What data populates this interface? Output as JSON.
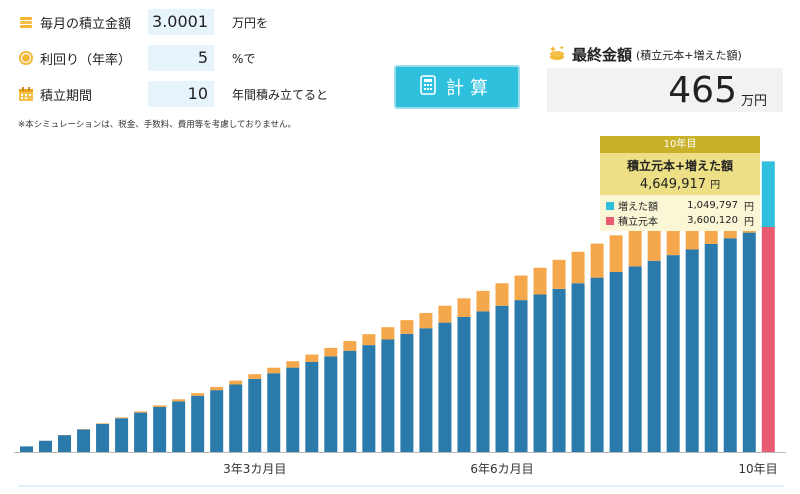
{
  "form": {
    "monthly": {
      "label": "毎月の積立金額",
      "value": "3.0001",
      "suffix": "万円を",
      "icon": "coin-stack-icon"
    },
    "rate": {
      "label": "利回り（年率）",
      "value": "5",
      "suffix": "%で",
      "icon": "coin-icon"
    },
    "period": {
      "label": "積立期間",
      "value": "10",
      "suffix": "年間積み立てると",
      "icon": "calendar-icon"
    }
  },
  "note": "※本シミュレーションは、税金、手数料、費用等を考慮しておりません。",
  "calc_button": {
    "label": "計算",
    "icon": "calculator-icon"
  },
  "result": {
    "title": "最終金額",
    "subtitle": "(積立元本+増えた額)",
    "value": "465",
    "unit": "万円",
    "icon": "coins-sparkle-icon"
  },
  "tooltip": {
    "period": "10年目",
    "total_label": "積立元本+増えた額",
    "total_value": "4,649,917",
    "total_unit": "円",
    "gain_label": "増えた額",
    "gain_value": "1,049,797",
    "principal_label": "積立元本",
    "principal_value": "3,600,120",
    "unit": "円"
  },
  "colors": {
    "principal": "#2a7aac",
    "gain": "#f5a84b",
    "final_principal": "#e95b71",
    "final_gain": "#2ec0dd"
  },
  "chart_data": {
    "type": "bar",
    "stacked": true,
    "xlabels": [
      "3年3カ月目",
      "6年6カ月目",
      "10年目"
    ],
    "series": [
      {
        "name": "積立元本",
        "values": [
          90000,
          180000,
          270000,
          360000,
          450000,
          540000,
          630000,
          720000,
          810000,
          900000,
          990000,
          1080000,
          1170000,
          1260000,
          1350000,
          1440000,
          1530000,
          1620000,
          1710000,
          1800000,
          1890000,
          1980000,
          2070000,
          2160000,
          2250000,
          2340000,
          2430000,
          2520000,
          2610000,
          2700000,
          2790000,
          2880000,
          2970000,
          3060000,
          3150000,
          3240000,
          3330000,
          3420000,
          3510000,
          3600120
        ]
      },
      {
        "name": "増えた額",
        "values": [
          0,
          1100,
          2900,
          5600,
          9200,
          13700,
          19200,
          25700,
          33300,
          42000,
          51800,
          62800,
          75000,
          88400,
          103100,
          119100,
          136400,
          155100,
          175200,
          196800,
          219900,
          244500,
          270800,
          298700,
          328300,
          359700,
          392800,
          427800,
          464700,
          503600,
          544500,
          587500,
          632600,
          680000,
          729700,
          781800,
          836300,
          893400,
          953100,
          1049797
        ]
      }
    ],
    "ylim": [
      0,
      4800000
    ]
  }
}
